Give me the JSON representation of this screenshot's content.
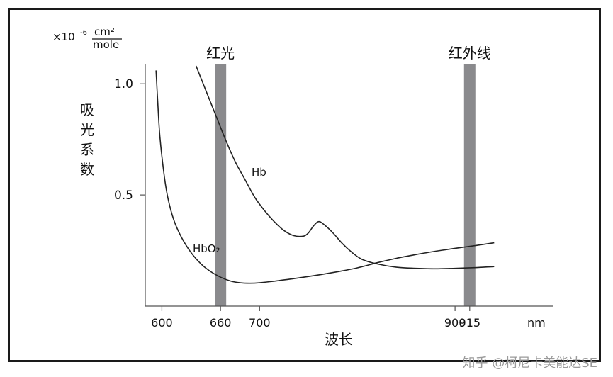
{
  "chart_data": {
    "type": "line",
    "ylabel": "吸光系数",
    "xlabel": "波长",
    "y_unit": {
      "prefix": "×10",
      "exponent": "-6",
      "numerator": "cm²",
      "denominator": "mole"
    },
    "x_unit": "nm",
    "x_ticks": [
      {
        "value": 600,
        "label": "600"
      },
      {
        "value": 660,
        "label": "660"
      },
      {
        "value": 700,
        "label": "700"
      },
      {
        "value": 900,
        "label": "900"
      },
      {
        "value": 915,
        "label": "915"
      }
    ],
    "y_ticks": [
      {
        "value": 0.5,
        "label": "0.5"
      },
      {
        "value": 1.0,
        "label": "1.0"
      }
    ],
    "xlim": [
      583,
      1000
    ],
    "ylim": [
      0,
      1.09
    ],
    "bands": [
      {
        "label": "红光",
        "x": 660
      },
      {
        "label": "红外线",
        "x": 915
      }
    ],
    "series": [
      {
        "name": "Hb",
        "points": [
          [
            635,
            1.08
          ],
          [
            645,
            0.97
          ],
          [
            655,
            0.86
          ],
          [
            665,
            0.75
          ],
          [
            675,
            0.65
          ],
          [
            685,
            0.57
          ],
          [
            695,
            0.49
          ],
          [
            705,
            0.43
          ],
          [
            715,
            0.38
          ],
          [
            725,
            0.34
          ],
          [
            735,
            0.317
          ],
          [
            745,
            0.315
          ],
          [
            750,
            0.33
          ],
          [
            755,
            0.36
          ],
          [
            760,
            0.38
          ],
          [
            765,
            0.37
          ],
          [
            775,
            0.33
          ],
          [
            785,
            0.28
          ],
          [
            795,
            0.24
          ],
          [
            805,
            0.21
          ],
          [
            820,
            0.19
          ],
          [
            840,
            0.175
          ],
          [
            860,
            0.17
          ],
          [
            880,
            0.168
          ],
          [
            900,
            0.17
          ],
          [
            920,
            0.173
          ],
          [
            940,
            0.178
          ]
        ]
      },
      {
        "name": "HbO₂",
        "points": [
          [
            594,
            1.06
          ],
          [
            596,
            0.9
          ],
          [
            598,
            0.76
          ],
          [
            602,
            0.6
          ],
          [
            606,
            0.49
          ],
          [
            612,
            0.39
          ],
          [
            620,
            0.31
          ],
          [
            630,
            0.24
          ],
          [
            640,
            0.19
          ],
          [
            650,
            0.155
          ],
          [
            660,
            0.13
          ],
          [
            670,
            0.113
          ],
          [
            680,
            0.105
          ],
          [
            690,
            0.103
          ],
          [
            700,
            0.105
          ],
          [
            720,
            0.115
          ],
          [
            740,
            0.127
          ],
          [
            760,
            0.14
          ],
          [
            780,
            0.155
          ],
          [
            800,
            0.172
          ],
          [
            820,
            0.195
          ],
          [
            840,
            0.215
          ],
          [
            860,
            0.232
          ],
          [
            880,
            0.247
          ],
          [
            900,
            0.26
          ],
          [
            920,
            0.272
          ],
          [
            940,
            0.285
          ]
        ]
      }
    ]
  },
  "watermark": "知乎 @柯尼卡美能达SE",
  "colors": {
    "band": "#8a8a8d",
    "curve": "#222222",
    "axis": "#555555"
  }
}
